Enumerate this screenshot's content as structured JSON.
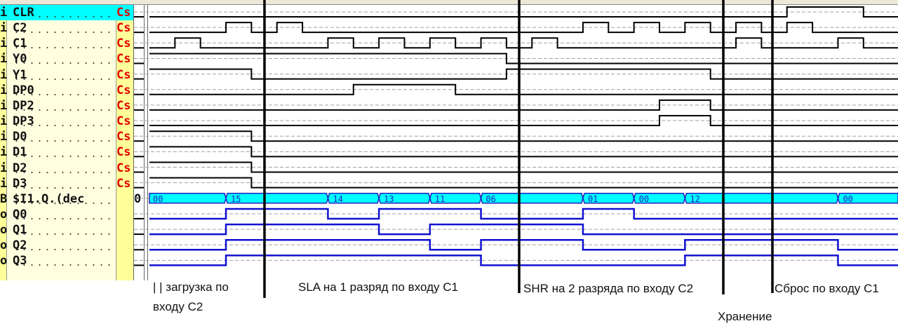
{
  "signals": [
    {
      "type": "i",
      "name": "CLR",
      "tag": "Cs",
      "selected": true,
      "start": 0,
      "edges": [
        25,
        28
      ]
    },
    {
      "type": "i",
      "name": "C2",
      "tag": "Cs",
      "start": 0,
      "edges": [
        3,
        4,
        5,
        6,
        17,
        18,
        19,
        20,
        21,
        22,
        23,
        24,
        25,
        26
      ]
    },
    {
      "type": "i",
      "name": "C1",
      "tag": "Cs",
      "start": 0,
      "edges": [
        1,
        2,
        7,
        8,
        9,
        10,
        11,
        12,
        13,
        14,
        15,
        16,
        23,
        24,
        27,
        28
      ]
    },
    {
      "type": "i",
      "name": "Y0",
      "tag": "Cs",
      "start": 1,
      "edges": [
        14
      ]
    },
    {
      "type": "i",
      "name": "Y1",
      "tag": "Cs",
      "start": 1,
      "edges": [
        4,
        14,
        22
      ]
    },
    {
      "type": "i",
      "name": "DP0",
      "tag": "Cs",
      "start": 0,
      "edges": [
        8,
        12
      ]
    },
    {
      "type": "i",
      "name": "DP2",
      "tag": "Cs",
      "start": 0,
      "edges": [
        20,
        22
      ]
    },
    {
      "type": "i",
      "name": "DP3",
      "tag": "Cs",
      "start": 0,
      "edges": [
        20,
        22
      ]
    },
    {
      "type": "i",
      "name": "D0",
      "tag": "Cs",
      "start": 1,
      "edges": [
        4
      ]
    },
    {
      "type": "i",
      "name": "D1",
      "tag": "Cs",
      "start": 1,
      "edges": [
        4
      ]
    },
    {
      "type": "i",
      "name": "D2",
      "tag": "Cs",
      "start": 1,
      "edges": [
        4
      ]
    },
    {
      "type": "i",
      "name": "D3",
      "tag": "Cs",
      "start": 1,
      "edges": [
        4
      ]
    }
  ],
  "bus": {
    "type": "B",
    "name": "$I1.Q.(dec",
    "value": "0",
    "segments": [
      {
        "t": 0,
        "label": "00"
      },
      {
        "t": 3,
        "label": "15"
      },
      {
        "t": 7,
        "label": "14"
      },
      {
        "t": 9,
        "label": "13"
      },
      {
        "t": 11,
        "label": "11"
      },
      {
        "t": 13,
        "label": "06"
      },
      {
        "t": 17,
        "label": "01"
      },
      {
        "t": 19,
        "label": "00"
      },
      {
        "t": 21,
        "label": "12"
      },
      {
        "t": 27,
        "label": "00"
      }
    ]
  },
  "outputs": [
    {
      "type": "o",
      "name": "Q0",
      "start": 0,
      "edges": [
        3,
        7,
        9,
        13,
        17,
        19
      ]
    },
    {
      "type": "o",
      "name": "Q1",
      "start": 0,
      "edges": [
        3,
        9,
        11,
        17
      ]
    },
    {
      "type": "o",
      "name": "Q2",
      "start": 0,
      "edges": [
        3,
        11,
        13,
        17,
        21,
        27
      ]
    },
    {
      "type": "o",
      "name": "Q3",
      "start": 0,
      "edges": [
        3,
        13,
        21,
        27
      ]
    }
  ],
  "annotations": {
    "load_line1": "| | загрузка по",
    "load_line2": "входу С2",
    "sla": "SLA на 1 разряд по входу С1",
    "shr": "SHR на 2 разряда по входу С2",
    "hold": "Хранение",
    "reset": "Сброс по входу С1"
  },
  "colors": {
    "input_wave": "#000000",
    "output_wave": "#1010d0",
    "bus_fill": "#00ffff",
    "tag": "#e00000",
    "selected_row": "#00ffff"
  }
}
